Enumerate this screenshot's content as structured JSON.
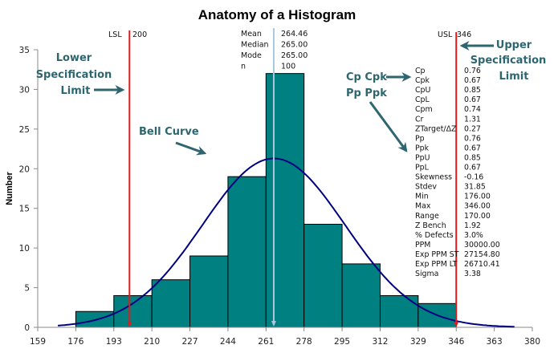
{
  "chart_data": {
    "type": "bar",
    "title": "Anatomy of a Histogram",
    "xlabel": "",
    "ylabel": "Number",
    "xlim": [
      159,
      380
    ],
    "ylim": [
      0,
      35
    ],
    "x_ticks": [
      159,
      176,
      193,
      210,
      227,
      244,
      261,
      278,
      295,
      312,
      329,
      346,
      363,
      380
    ],
    "y_ticks": [
      0,
      5,
      10,
      15,
      20,
      25,
      30,
      35
    ],
    "bins": [
      {
        "from": 176,
        "to": 193,
        "count": 2
      },
      {
        "from": 193,
        "to": 210,
        "count": 4
      },
      {
        "from": 210,
        "to": 227,
        "count": 6
      },
      {
        "from": 227,
        "to": 244,
        "count": 9
      },
      {
        "from": 244,
        "to": 261,
        "count": 19
      },
      {
        "from": 261,
        "to": 278,
        "count": 32
      },
      {
        "from": 278,
        "to": 295,
        "count": 13
      },
      {
        "from": 295,
        "to": 312,
        "count": 8
      },
      {
        "from": 312,
        "to": 329,
        "count": 4
      },
      {
        "from": 329,
        "to": 346,
        "count": 3
      }
    ],
    "bell_curve": {
      "mean": 264.46,
      "stdev": 31.85,
      "n": 100,
      "bin_width": 17,
      "x_range": [
        168,
        372
      ]
    },
    "lsl": {
      "label": "LSL",
      "value": 200,
      "value_text": "200"
    },
    "usl": {
      "label": "USL",
      "value": 346,
      "value_text": "346"
    },
    "mean_line": {
      "value": 264.46
    },
    "summary": [
      {
        "label": "Mean",
        "value": "264.46"
      },
      {
        "label": "Median",
        "value": "265.00"
      },
      {
        "label": "Mode",
        "value": "265.00"
      },
      {
        "label": "n",
        "value": "100"
      }
    ],
    "stats": [
      {
        "label": "Cp",
        "value": "0.76"
      },
      {
        "label": "Cpk",
        "value": "0.67"
      },
      {
        "label": "CpU",
        "value": "0.85"
      },
      {
        "label": "CpL",
        "value": "0.67"
      },
      {
        "label": "Cpm",
        "value": "0.74"
      },
      {
        "label": "Cr",
        "value": "1.31",
        "highlight": true
      },
      {
        "label": "ZTarget/ΔZ",
        "value": "0.27"
      },
      {
        "label": "Pp",
        "value": "0.76"
      },
      {
        "label": "Ppk",
        "value": "0.67"
      },
      {
        "label": "PpU",
        "value": "0.85"
      },
      {
        "label": "PpL",
        "value": "0.67"
      },
      {
        "label": "Skewness",
        "value": "-0.16"
      },
      {
        "label": "Stdev",
        "value": "31.85"
      },
      {
        "label": "Min",
        "value": "176.00"
      },
      {
        "label": "Max",
        "value": "346.00"
      },
      {
        "label": "Range",
        "value": "170.00"
      },
      {
        "label": "Z Bench",
        "value": "1.92"
      },
      {
        "label": "% Defects",
        "value": "3.0%"
      },
      {
        "label": "PPM",
        "value": "30000.00"
      },
      {
        "label": "Exp PPM ST",
        "value": "27154.80"
      },
      {
        "label": "Exp PPM LT",
        "value": "26710.41"
      },
      {
        "label": "Sigma",
        "value": "3.38"
      }
    ],
    "annotations": {
      "lower_spec": [
        "Lower",
        "Specification",
        "Limit"
      ],
      "upper_spec": [
        "Upper",
        "Specification",
        "Limit"
      ],
      "bell_curve": "Bell Curve",
      "cp_cpk": "Cp Cpk",
      "pp_ppk": "Pp Ppk"
    }
  },
  "colors": {
    "bar_fill": "#008080",
    "bar_stroke": "#000000",
    "curve": "#000080",
    "spec_line": "#e31a1c",
    "mean_line": "#a8c8e0",
    "annotation": "#2e6670",
    "axis": "#888888",
    "highlight_value": "#e31a1c"
  }
}
